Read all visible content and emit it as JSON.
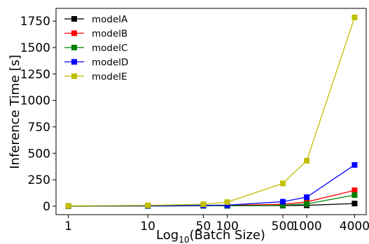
{
  "chart_data": {
    "type": "line",
    "title": "",
    "xlabel": "Log",
    "xlabel_sub": "10",
    "xlabel_suffix": "(Batch Size)",
    "ylabel": "Inference Time [s]",
    "x_scale": "log",
    "xlim": [
      0.7,
      5600
    ],
    "ylim": [
      -80,
      1870
    ],
    "x": [
      1,
      10,
      50,
      100,
      500,
      1000,
      4000
    ],
    "x_tick_labels": [
      "1",
      "10",
      "50",
      "100",
      "500",
      "1000",
      "4000"
    ],
    "y_ticks": [
      0,
      250,
      500,
      750,
      1000,
      1250,
      1500,
      1750
    ],
    "y_tick_labels": [
      "0",
      "250",
      "500",
      "750",
      "1000",
      "1250",
      "1500",
      "1750"
    ],
    "grid": false,
    "legend_position": "top-left",
    "series": [
      {
        "name": "modelA",
        "color": "#000000",
        "values": [
          1,
          2,
          3,
          4,
          5,
          8,
          25
        ]
      },
      {
        "name": "modelB",
        "color": "#ff0000",
        "values": [
          2,
          3,
          5,
          8,
          18,
          40,
          150
        ]
      },
      {
        "name": "modelC",
        "color": "#008000",
        "values": [
          1,
          2,
          3,
          4,
          8,
          22,
          105
        ]
      },
      {
        "name": "modelD",
        "color": "#0000ff",
        "values": [
          2,
          4,
          7,
          10,
          42,
          85,
          390
        ]
      },
      {
        "name": "modelE",
        "color": "#bfbf00",
        "values": [
          3,
          8,
          18,
          38,
          215,
          430,
          1785
        ]
      }
    ]
  }
}
